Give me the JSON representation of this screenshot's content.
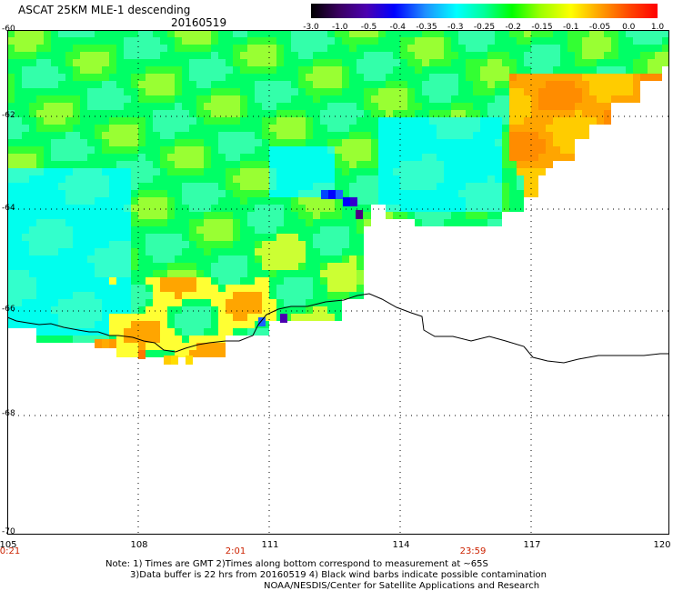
{
  "header": {
    "title": "ASCAT 25KM MLE-1 descending",
    "date": "20160519"
  },
  "colorbar": {
    "labels": [
      "-3.0",
      "-1.0",
      "-0.5",
      "-0.4",
      "-0.35",
      "-0.3",
      "-0.25",
      "-0.2",
      "-0.15",
      "-0.1",
      "-0.05",
      "0.0",
      "1.0"
    ],
    "colors": [
      "#000000",
      "#4b0082",
      "#0000ff",
      "#1e90ff",
      "#00ffff",
      "#00ff7f",
      "#00ff00",
      "#7fff00",
      "#ffff00",
      "#ffa500",
      "#ff4500",
      "#ff0000"
    ]
  },
  "axes": {
    "lat_labels": [
      "-60",
      "-62",
      "-64",
      "-66",
      "-68",
      "-70"
    ],
    "lon_labels": [
      "105",
      "108",
      "111",
      "114",
      "117",
      "120"
    ],
    "time_labels": [
      "0:21",
      "2:01",
      "23:59"
    ]
  },
  "notes": {
    "line1": "Note: 1) Times are GMT 2)Times along bottom correspond to measurement at ~65S",
    "line2": "3)Data buffer is 22 hrs from 20160519 4) Black wind barbs indicate possible contamination",
    "line3": "NOAA/NESDIS/Center for Satellite Applications and Research"
  }
}
